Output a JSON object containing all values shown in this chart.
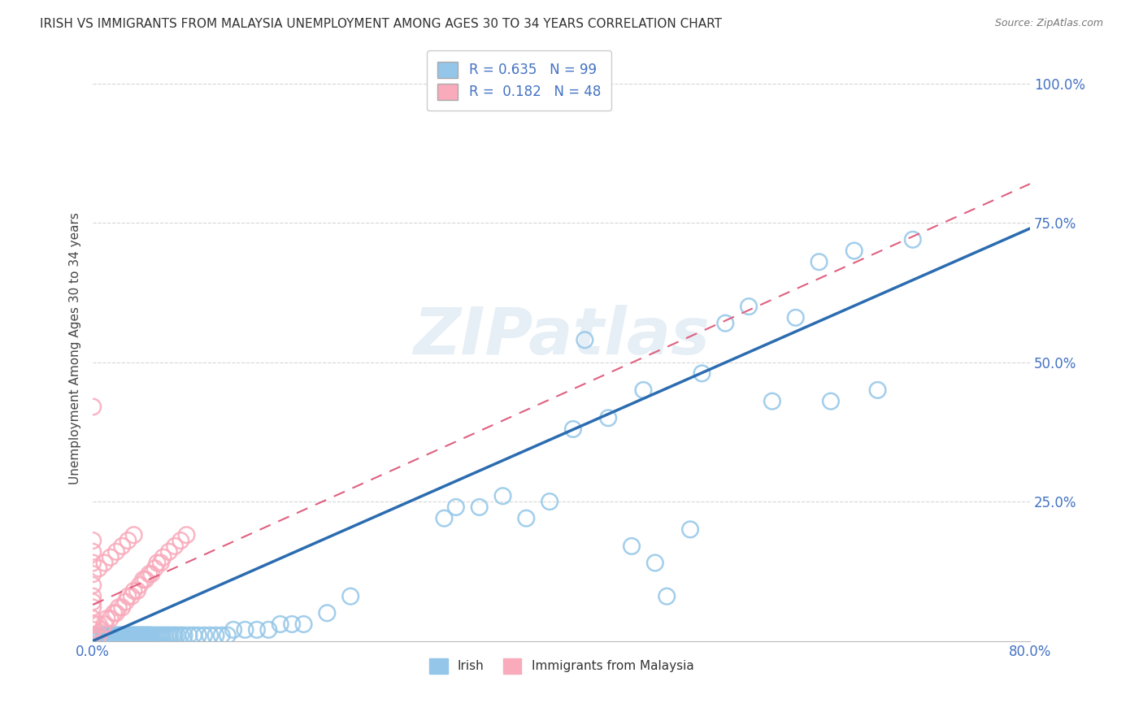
{
  "title": "IRISH VS IMMIGRANTS FROM MALAYSIA UNEMPLOYMENT AMONG AGES 30 TO 34 YEARS CORRELATION CHART",
  "source": "Source: ZipAtlas.com",
  "ylabel": "Unemployment Among Ages 30 to 34 years",
  "xlim": [
    0.0,
    0.8
  ],
  "ylim": [
    0.0,
    1.05
  ],
  "irish_R": 0.635,
  "irish_N": 99,
  "malaysia_R": 0.182,
  "malaysia_N": 48,
  "irish_color": "#93C6E8",
  "irish_line_color": "#2B6CB0",
  "malaysia_color": "#F9AABB",
  "malaysia_line_color": "#E06080",
  "watermark": "ZIPatlas",
  "background_color": "#FFFFFF",
  "grid_color": "#CCCCCC",
  "irish_scatter_x": [
    0.003,
    0.005,
    0.007,
    0.009,
    0.01,
    0.011,
    0.012,
    0.013,
    0.014,
    0.015,
    0.016,
    0.017,
    0.018,
    0.019,
    0.02,
    0.021,
    0.022,
    0.023,
    0.024,
    0.025,
    0.026,
    0.027,
    0.028,
    0.029,
    0.03,
    0.031,
    0.032,
    0.033,
    0.034,
    0.035,
    0.036,
    0.037,
    0.038,
    0.039,
    0.04,
    0.041,
    0.042,
    0.043,
    0.044,
    0.045,
    0.046,
    0.047,
    0.048,
    0.049,
    0.05,
    0.052,
    0.054,
    0.056,
    0.058,
    0.06,
    0.062,
    0.064,
    0.066,
    0.068,
    0.07,
    0.072,
    0.075,
    0.078,
    0.082,
    0.086,
    0.09,
    0.095,
    0.1,
    0.105,
    0.11,
    0.115,
    0.12,
    0.13,
    0.14,
    0.15,
    0.16,
    0.17,
    0.18,
    0.2,
    0.22,
    0.3,
    0.31,
    0.33,
    0.35,
    0.37,
    0.39,
    0.41,
    0.42,
    0.44,
    0.46,
    0.47,
    0.48,
    0.49,
    0.51,
    0.52,
    0.54,
    0.56,
    0.58,
    0.6,
    0.62,
    0.63,
    0.65,
    0.67,
    0.7
  ],
  "irish_scatter_y": [
    0.01,
    0.01,
    0.01,
    0.01,
    0.01,
    0.01,
    0.01,
    0.01,
    0.01,
    0.01,
    0.01,
    0.01,
    0.01,
    0.01,
    0.01,
    0.01,
    0.01,
    0.01,
    0.01,
    0.01,
    0.01,
    0.01,
    0.01,
    0.01,
    0.01,
    0.01,
    0.01,
    0.01,
    0.01,
    0.01,
    0.01,
    0.01,
    0.01,
    0.01,
    0.01,
    0.01,
    0.01,
    0.01,
    0.01,
    0.01,
    0.01,
    0.01,
    0.01,
    0.01,
    0.01,
    0.01,
    0.01,
    0.01,
    0.01,
    0.01,
    0.01,
    0.01,
    0.01,
    0.01,
    0.01,
    0.01,
    0.01,
    0.01,
    0.01,
    0.01,
    0.01,
    0.01,
    0.01,
    0.01,
    0.01,
    0.01,
    0.02,
    0.02,
    0.02,
    0.02,
    0.03,
    0.03,
    0.03,
    0.05,
    0.08,
    0.22,
    0.24,
    0.24,
    0.26,
    0.22,
    0.25,
    0.38,
    0.54,
    0.4,
    0.17,
    0.45,
    0.14,
    0.08,
    0.2,
    0.48,
    0.57,
    0.6,
    0.43,
    0.58,
    0.68,
    0.43,
    0.7,
    0.45,
    0.72
  ],
  "malaysia_scatter_x": [
    0.0,
    0.0,
    0.0,
    0.0,
    0.0,
    0.0,
    0.0,
    0.0,
    0.005,
    0.005,
    0.008,
    0.01,
    0.012,
    0.015,
    0.018,
    0.02,
    0.022,
    0.025,
    0.028,
    0.03,
    0.033,
    0.035,
    0.038,
    0.04,
    0.043,
    0.045,
    0.048,
    0.05,
    0.053,
    0.055,
    0.058,
    0.06,
    0.065,
    0.07,
    0.075,
    0.08,
    0.0,
    0.0,
    0.0,
    0.0,
    0.0,
    0.005,
    0.01,
    0.015,
    0.02,
    0.025,
    0.03,
    0.035
  ],
  "malaysia_scatter_y": [
    0.01,
    0.02,
    0.03,
    0.04,
    0.06,
    0.07,
    0.08,
    0.1,
    0.01,
    0.03,
    0.02,
    0.03,
    0.04,
    0.04,
    0.05,
    0.05,
    0.06,
    0.06,
    0.07,
    0.08,
    0.08,
    0.09,
    0.09,
    0.1,
    0.11,
    0.11,
    0.12,
    0.12,
    0.13,
    0.14,
    0.14,
    0.15,
    0.16,
    0.17,
    0.18,
    0.19,
    0.12,
    0.14,
    0.16,
    0.18,
    0.42,
    0.13,
    0.14,
    0.15,
    0.16,
    0.17,
    0.18,
    0.19
  ],
  "irish_line_x": [
    0.0,
    0.8
  ],
  "irish_line_y": [
    0.0,
    0.74
  ],
  "malaysia_line_x": [
    0.0,
    0.8
  ],
  "malaysia_line_y": [
    0.065,
    0.82
  ]
}
